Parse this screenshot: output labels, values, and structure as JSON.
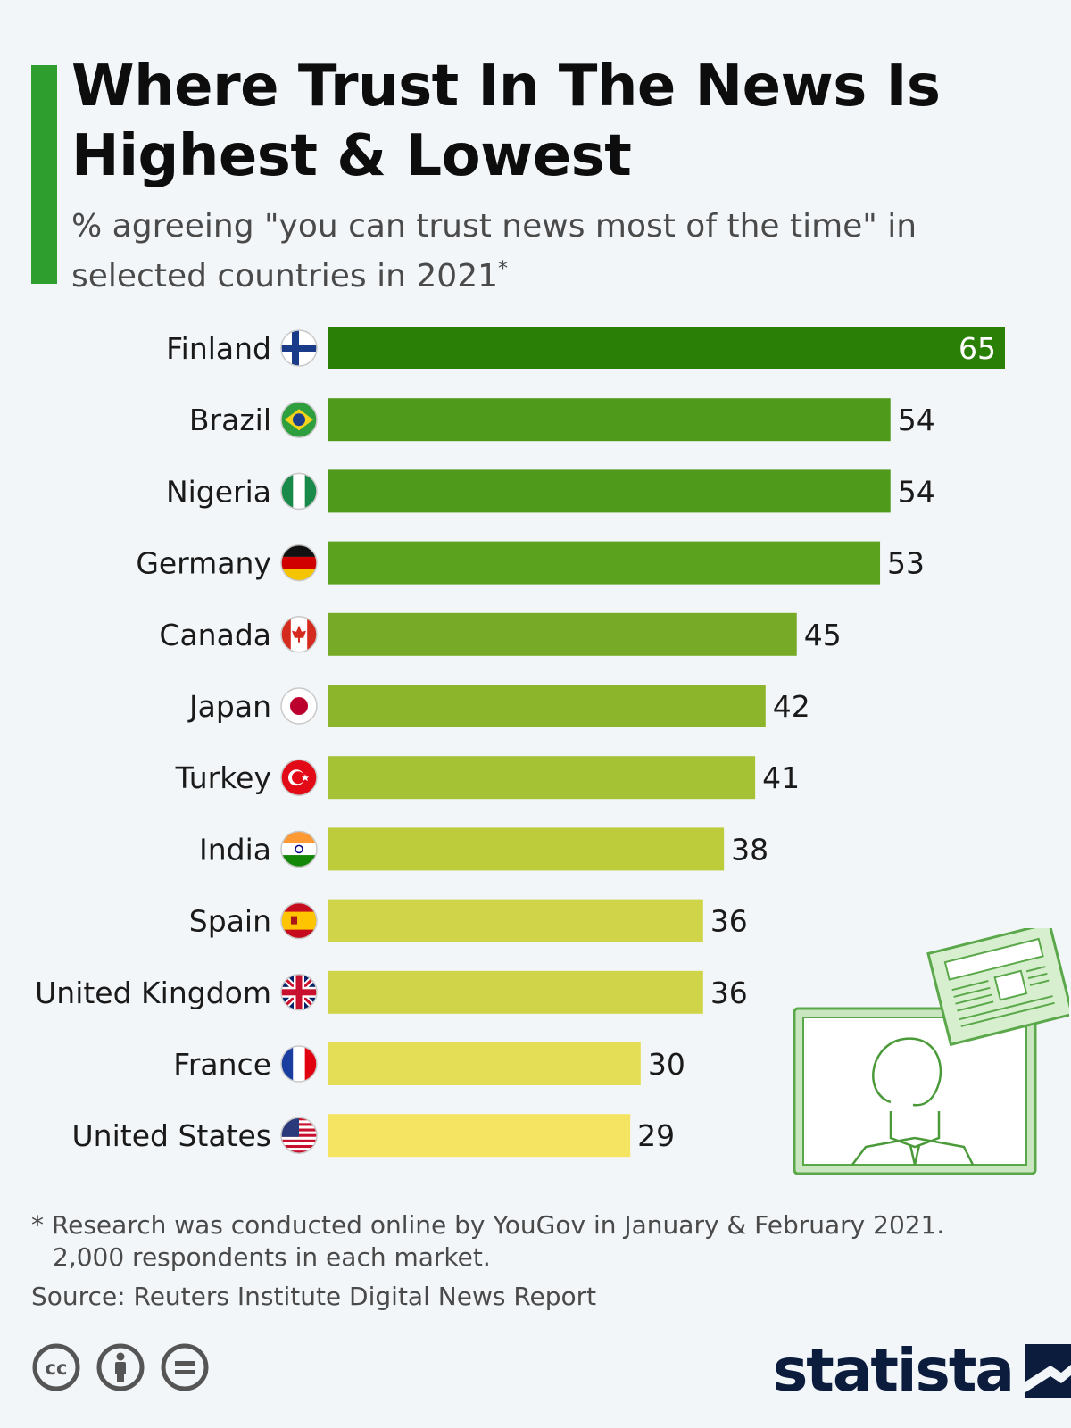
{
  "title": "Where Trust In The News Is Highest & Lowest",
  "subtitle": "% agreeing \"you can trust news most of the time\" in selected countries in 2021",
  "subtitle_mark": "*",
  "colors": {
    "accent": "#2e9e2e",
    "bars": [
      "#2a7f07",
      "#4f9a1a",
      "#4f9a1a",
      "#5ba21f",
      "#77ab27",
      "#8db52b",
      "#a4c233",
      "#bccc3a",
      "#cfd448",
      "#cfd448",
      "#e3de55",
      "#f5e461"
    ]
  },
  "chart_data": {
    "type": "bar",
    "orientation": "horizontal",
    "categories": [
      "Finland",
      "Brazil",
      "Nigeria",
      "Germany",
      "Canada",
      "Japan",
      "Turkey",
      "India",
      "Spain",
      "United Kingdom",
      "France",
      "United States"
    ],
    "values": [
      65,
      54,
      54,
      53,
      45,
      42,
      41,
      38,
      36,
      36,
      30,
      29
    ],
    "flags": [
      "finland-flag",
      "brazil-flag",
      "nigeria-flag",
      "germany-flag",
      "canada-flag",
      "japan-flag",
      "turkey-flag",
      "india-flag",
      "spain-flag",
      "uk-flag",
      "france-flag",
      "usa-flag"
    ],
    "xlim": [
      0,
      65
    ],
    "grid": false,
    "value_labels": true
  },
  "footnote": {
    "line1": "* Research was conducted online by YouGov in January & February 2021.",
    "line2": "2,000 respondents in each market."
  },
  "source": "Source: Reuters Institute Digital News Report",
  "brand": "statista",
  "license_icons": [
    "creative-commons-icon",
    "attribution-icon",
    "no-derivatives-icon"
  ]
}
